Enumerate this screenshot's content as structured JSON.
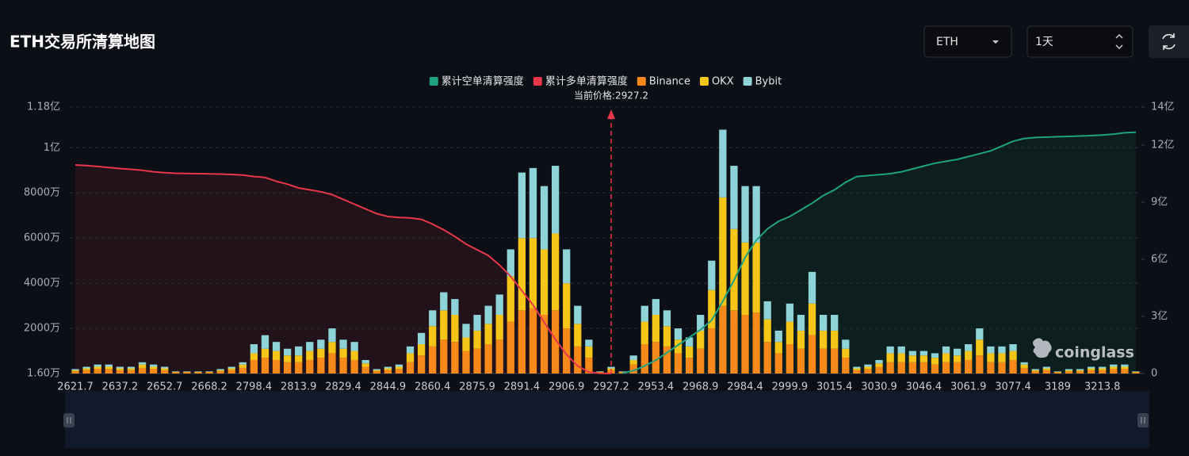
{
  "header": {
    "title": "ETH交易所清算地图",
    "symbol": "ETH",
    "period": "1天"
  },
  "watermark": "coinglass",
  "chart_data": {
    "type": "bar",
    "annotation": "当前价格:2927.2",
    "current_price": 2927.2,
    "categories": [
      "2621.7",
      null,
      null,
      null,
      "2637.2",
      null,
      null,
      null,
      "2652.7",
      null,
      null,
      null,
      "2668.2",
      null,
      null,
      null,
      "2798.4",
      null,
      null,
      null,
      "2813.9",
      null,
      null,
      null,
      "2829.4",
      null,
      null,
      null,
      "2844.9",
      null,
      null,
      null,
      "2860.4",
      null,
      null,
      null,
      "2875.9",
      null,
      null,
      null,
      "2891.4",
      null,
      null,
      null,
      "2906.9",
      null,
      null,
      null,
      "2927.2",
      null,
      null,
      null,
      "2953.4",
      null,
      null,
      null,
      "2968.9",
      null,
      null,
      null,
      "2984.4",
      null,
      null,
      null,
      "2999.9",
      null,
      null,
      null,
      "3015.4",
      null,
      null,
      null,
      "3030.9",
      null,
      null,
      null,
      "3046.4",
      null,
      null,
      null,
      "3061.9",
      null,
      null,
      null,
      "3077.4",
      null,
      null,
      null,
      "3189",
      null,
      null,
      null,
      "3213.8",
      null,
      null,
      null
    ],
    "ylim": [
      1.6,
      11800
    ],
    "yticks": [
      {
        "value": 1.6,
        "label": "1.60万"
      },
      {
        "value": 2000,
        "label": "2000万"
      },
      {
        "value": 4000,
        "label": "4000万"
      },
      {
        "value": 6000,
        "label": "6000万"
      },
      {
        "value": 8000,
        "label": "8000万"
      },
      {
        "value": 10000,
        "label": "1亿"
      },
      {
        "value": 11800,
        "label": "1.18亿"
      }
    ],
    "y2lim": [
      0,
      140000
    ],
    "y2ticks": [
      0,
      {
        "value": 30000,
        "label": "3亿"
      },
      {
        "value": 60000,
        "label": "6亿"
      },
      {
        "value": 90000,
        "label": "9亿"
      },
      {
        "value": 120000,
        "label": "12亿"
      },
      {
        "value": 140000,
        "label": "14亿"
      }
    ],
    "grid": true,
    "legend": "top",
    "series": [
      {
        "name": "累计空单清算强度",
        "type": "line",
        "axis": "y2",
        "color": "#1fa37f",
        "values": [
          null,
          null,
          null,
          null,
          null,
          null,
          null,
          null,
          null,
          null,
          null,
          null,
          null,
          null,
          null,
          null,
          null,
          null,
          null,
          null,
          null,
          null,
          null,
          null,
          null,
          null,
          null,
          null,
          null,
          null,
          null,
          null,
          null,
          null,
          null,
          null,
          null,
          null,
          null,
          null,
          null,
          null,
          null,
          null,
          null,
          null,
          null,
          null,
          null,
          200,
          1500,
          4000,
          7000,
          11000,
          15000,
          19000,
          23000,
          28000,
          38000,
          49000,
          61000,
          70000,
          76000,
          80000,
          82500,
          86000,
          89500,
          93500,
          96500,
          100500,
          103500,
          104000,
          104500,
          105000,
          106000,
          107500,
          109000,
          110500,
          111500,
          112500,
          114000,
          115500,
          117000,
          119500,
          122000,
          123500,
          124000,
          124200,
          124400,
          124600,
          124800,
          125000,
          125300,
          125800,
          126500,
          126800
        ]
      },
      {
        "name": "累计多单清算强度",
        "type": "line",
        "axis": "y2",
        "color": "#e8364a",
        "values": [
          109600,
          109300,
          108800,
          108200,
          107700,
          107300,
          106800,
          106000,
          105500,
          105200,
          105100,
          105000,
          104900,
          104800,
          104600,
          104300,
          103500,
          103000,
          101000,
          99500,
          97500,
          96500,
          95500,
          94000,
          91500,
          89000,
          86500,
          84000,
          82500,
          82000,
          81800,
          81000,
          78500,
          75500,
          72000,
          68000,
          65000,
          62000,
          57000,
          51000,
          43500,
          36000,
          27000,
          18000,
          10000,
          4000,
          800,
          100,
          0,
          null,
          null,
          null,
          null,
          null,
          null,
          null,
          null,
          null,
          null,
          null,
          null,
          null,
          null,
          null,
          null,
          null,
          null,
          null,
          null,
          null,
          null,
          null,
          null,
          null,
          null,
          null,
          null,
          null,
          null,
          null,
          null,
          null,
          null,
          null,
          null,
          null,
          null,
          null,
          null,
          null,
          null,
          null,
          null,
          null,
          null,
          null
        ]
      },
      {
        "name": "Binance",
        "type": "bar",
        "color": "#f7891b",
        "values": [
          100,
          150,
          200,
          200,
          150,
          150,
          250,
          200,
          150,
          50,
          50,
          50,
          50,
          100,
          150,
          250,
          600,
          700,
          600,
          500,
          500,
          600,
          700,
          900,
          700,
          600,
          300,
          100,
          150,
          200,
          500,
          800,
          1200,
          1500,
          1400,
          1000,
          1100,
          1300,
          1500,
          2300,
          2800,
          2900,
          2600,
          2800,
          2000,
          1200,
          700,
          50,
          150,
          50,
          400,
          1300,
          1400,
          1200,
          900,
          700,
          1100,
          2000,
          3000,
          2800,
          2600,
          2700,
          1400,
          900,
          1300,
          1100,
          1700,
          1100,
          1100,
          700,
          150,
          200,
          300,
          500,
          500,
          500,
          500,
          400,
          500,
          500,
          600,
          800,
          500,
          500,
          600,
          250,
          100,
          150,
          50,
          100,
          100,
          150,
          150,
          200,
          200,
          50
        ]
      },
      {
        "name": "OKX",
        "type": "bar",
        "color": "#f5c518",
        "values": [
          50,
          80,
          100,
          100,
          80,
          80,
          150,
          100,
          80,
          30,
          30,
          30,
          30,
          50,
          80,
          150,
          300,
          400,
          400,
          300,
          300,
          400,
          400,
          500,
          400,
          400,
          150,
          50,
          80,
          100,
          400,
          500,
          900,
          1300,
          1200,
          600,
          800,
          900,
          1100,
          2000,
          3200,
          3100,
          2900,
          3400,
          2000,
          1000,
          500,
          30,
          80,
          30,
          200,
          1000,
          1200,
          900,
          600,
          500,
          800,
          1700,
          4800,
          3600,
          3200,
          3100,
          1000,
          500,
          1000,
          800,
          1400,
          800,
          800,
          400,
          80,
          100,
          150,
          400,
          400,
          300,
          300,
          300,
          400,
          300,
          400,
          700,
          400,
          400,
          400,
          150,
          50,
          80,
          30,
          50,
          50,
          80,
          80,
          100,
          100,
          30
        ]
      },
      {
        "name": "Bybit",
        "type": "bar",
        "color": "#8ed3d8",
        "values": [
          50,
          70,
          100,
          100,
          70,
          70,
          100,
          100,
          70,
          20,
          20,
          20,
          20,
          50,
          70,
          100,
          400,
          600,
          400,
          300,
          400,
          400,
          400,
          600,
          400,
          400,
          150,
          50,
          70,
          100,
          300,
          500,
          700,
          800,
          700,
          600,
          700,
          800,
          900,
          1200,
          2900,
          3100,
          2800,
          3000,
          1500,
          800,
          300,
          20,
          70,
          20,
          200,
          700,
          700,
          700,
          500,
          400,
          700,
          1300,
          3000,
          2800,
          2500,
          2500,
          800,
          500,
          800,
          700,
          1400,
          700,
          700,
          400,
          70,
          100,
          150,
          300,
          300,
          200,
          200,
          200,
          300,
          300,
          300,
          500,
          300,
          300,
          300,
          100,
          50,
          70,
          20,
          50,
          50,
          70,
          70,
          100,
          100,
          20
        ]
      }
    ]
  }
}
